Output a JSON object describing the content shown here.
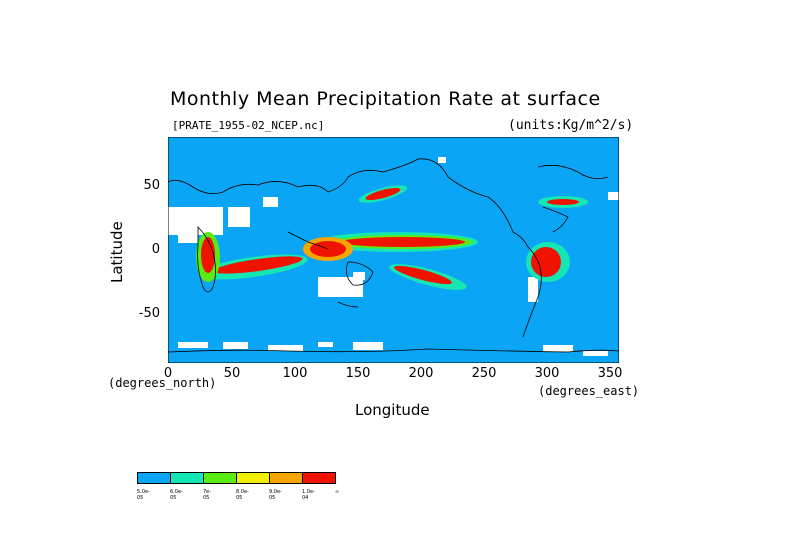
{
  "title": "Monthly Mean Precipitation Rate at surface",
  "file_label": "[PRATE_1955-02_NCEP.nc]",
  "units_label": "(units:Kg/m^2/s)",
  "axes": {
    "xlabel": "Longitude",
    "ylabel": "Latitude",
    "x_unit": "(degrees_north)",
    "y_unit": "(degrees_east)",
    "x_ticks": [
      "0",
      "50",
      "100",
      "150",
      "200",
      "250",
      "300",
      "350"
    ],
    "y_ticks": [
      "50",
      "0",
      "-50"
    ],
    "x_range": [
      0,
      357.5
    ],
    "y_range": [
      -90,
      90
    ]
  },
  "legend": {
    "colors": [
      "#0aa5f5",
      "#14e6b4",
      "#5aeb14",
      "#f0f000",
      "#f5a500",
      "#f01400"
    ],
    "labels": [
      "5.0e-05",
      "6.0e-05",
      "7e-05",
      "8.0e-05",
      "9.0e-05",
      "1.0e-04",
      "∞"
    ]
  },
  "colors": {
    "ocean": "#0aa5f5",
    "missing": "#ffffff",
    "coast": "#000000"
  }
}
